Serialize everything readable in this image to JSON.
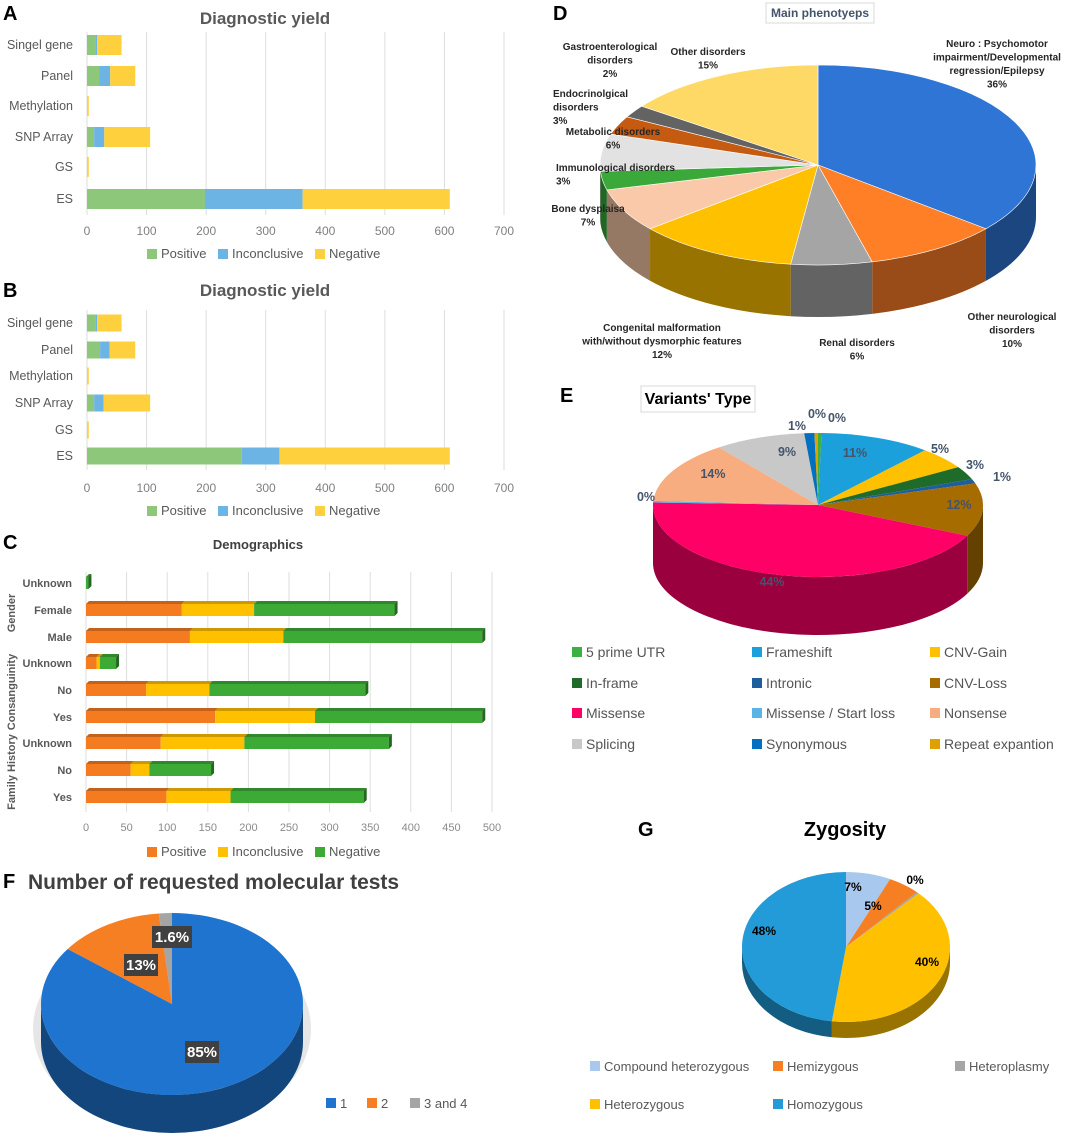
{
  "chart_data": [
    {
      "panel": "A",
      "type": "bar",
      "orientation": "horizontal",
      "stacked": true,
      "title": "Diagnostic yield",
      "categories": [
        "Singel gene",
        "Panel",
        "Methylation",
        "SNP Array",
        "GS",
        "ES"
      ],
      "series": [
        {
          "name": "Positive",
          "color": "#8cc77a",
          "values": [
            14,
            21,
            0,
            12,
            0,
            198
          ]
        },
        {
          "name": "Inconclusive",
          "color": "#6cb4e4",
          "values": [
            3,
            18,
            0,
            17,
            0,
            164
          ]
        },
        {
          "name": "Negative",
          "color": "#ffd03d",
          "values": [
            41,
            42,
            3,
            77,
            3,
            247
          ]
        }
      ],
      "xlim": [
        0,
        700
      ],
      "xticks": [
        "0",
        "100",
        "200",
        "300",
        "400",
        "500",
        "600",
        "700"
      ],
      "grid": true,
      "legend": "bottom"
    },
    {
      "panel": "B",
      "type": "bar",
      "orientation": "horizontal",
      "stacked": true,
      "title": "Diagnostic yield",
      "categories": [
        "Singel gene",
        "Panel",
        "Methylation",
        "SNP Array",
        "GS",
        "ES"
      ],
      "series": [
        {
          "name": "Positive",
          "color": "#8cc77a",
          "values": [
            15,
            22,
            0,
            12,
            0,
            260
          ]
        },
        {
          "name": "Inconclusive",
          "color": "#6cb4e4",
          "values": [
            2,
            16,
            0,
            16,
            0,
            63
          ]
        },
        {
          "name": "Negative",
          "color": "#ffd03d",
          "values": [
            41,
            43,
            3,
            78,
            3,
            286
          ]
        }
      ],
      "xlim": [
        0,
        700
      ],
      "xticks": [
        "0",
        "100",
        "200",
        "300",
        "400",
        "500",
        "600",
        "700"
      ],
      "grid": true,
      "legend": "bottom"
    },
    {
      "panel": "C",
      "type": "bar",
      "orientation": "horizontal",
      "stacked": true,
      "three_d": true,
      "title": "Demographics",
      "groups": [
        "Gender",
        "Consanguinity",
        "Family History"
      ],
      "categories": [
        "Unknown",
        "Female",
        "Male",
        "Unknown",
        "No",
        "Yes",
        "Unknown",
        "No",
        "Yes"
      ],
      "series": [
        {
          "name": "Positive",
          "color": "#f47b20",
          "values": [
            0,
            118,
            128,
            13,
            74,
            159,
            92,
            55,
            99
          ]
        },
        {
          "name": "Inconclusive",
          "color": "#ffc000",
          "values": [
            0,
            89,
            115,
            4,
            78,
            123,
            103,
            23,
            79
          ]
        },
        {
          "name": "Negative",
          "color": "#3daa35",
          "values": [
            3,
            173,
            245,
            20,
            192,
            206,
            178,
            76,
            164
          ]
        }
      ],
      "xlim": [
        0,
        500
      ],
      "xticks": [
        "0",
        "50",
        "100",
        "150",
        "200",
        "250",
        "300",
        "350",
        "400",
        "450",
        "500"
      ],
      "grid": true,
      "legend": "bottom"
    },
    {
      "panel": "D",
      "type": "pie",
      "three_d": true,
      "title": "Main phenotyeps",
      "labels": [
        [
          "Neuro : Psychomotor",
          "impairment/Developmental",
          "regression/Epilepsy"
        ],
        [
          "Other neurological",
          "disorders"
        ],
        [
          "Renal disorders"
        ],
        [
          "Congenital malformation",
          "with/without dysmorphic features"
        ],
        [
          "Bone dysplaisa"
        ],
        [
          "Immunological disorders"
        ],
        [
          "Metabolic disorders"
        ],
        [
          "Endocrinolgical",
          "disorders"
        ],
        [
          "Gastroenterological",
          "disorders"
        ],
        [
          "Other disorders"
        ]
      ],
      "values": [
        36,
        10,
        6,
        12,
        7,
        3,
        6,
        3,
        2,
        15
      ],
      "value_labels": [
        "36%",
        "10%",
        "6%",
        "12%",
        "7%",
        "3%",
        "6%",
        "3%",
        "2%",
        "15%"
      ],
      "colors": [
        "#2e75d6",
        "#ff7f27",
        "#a5a5a5",
        "#ffc000",
        "#f9c9a9",
        "#3aa93a",
        "#e2e2e2",
        "#c55a11",
        "#636363",
        "#ffd966"
      ]
    },
    {
      "panel": "E",
      "type": "pie",
      "three_d": true,
      "title": "Variants' Type",
      "categories": [
        "5 prime UTR",
        "Frameshift",
        "CNV-Gain",
        "In-frame",
        "Intronic",
        "CNV-Loss",
        "Missense",
        "Missense / Start loss",
        "Nonsense",
        "Splicing",
        "Synonymous",
        "Repeat expantion"
      ],
      "values": [
        0,
        11,
        5,
        3,
        1,
        12,
        44,
        0,
        14,
        9,
        1,
        0
      ],
      "value_labels": [
        "0%",
        "11%",
        "5%",
        "3%",
        "1%",
        "12%",
        "44%",
        "0%",
        "14%",
        "9%",
        "1%",
        "0%"
      ],
      "colors": [
        "#3cb043",
        "#1ca0dc",
        "#ffc000",
        "#1e6b2a",
        "#1f5e9c",
        "#a66c00",
        "#ff0066",
        "#5ab4e5",
        "#f8ad80",
        "#c8c8c8",
        "#0070c0",
        "#e0a000"
      ],
      "legend": "bottom"
    },
    {
      "panel": "F",
      "type": "pie",
      "three_d": true,
      "title": "Number of requested  molecular tests",
      "categories": [
        "1",
        "2",
        "3 and 4"
      ],
      "values": [
        85,
        13,
        1.6
      ],
      "value_labels": [
        "85%",
        "13%",
        "1.6%"
      ],
      "colors": [
        "#1f74cf",
        "#f77f23",
        "#a5a5a5"
      ],
      "legend": "bottom-right"
    },
    {
      "panel": "G",
      "type": "pie",
      "three_d": true,
      "title": "Zygosity",
      "categories": [
        "Compound heterozygous",
        "Hemizygous",
        "Heteroplasmy",
        "Heterozygous",
        "Homozygous"
      ],
      "values": [
        7,
        5,
        0,
        40,
        48
      ],
      "value_labels": [
        "7%",
        "5%",
        "0%",
        "40%",
        "48%"
      ],
      "colors": [
        "#a9c8ee",
        "#f77f23",
        "#a5a5a5",
        "#ffc000",
        "#229bd8"
      ],
      "legend": "bottom"
    }
  ]
}
